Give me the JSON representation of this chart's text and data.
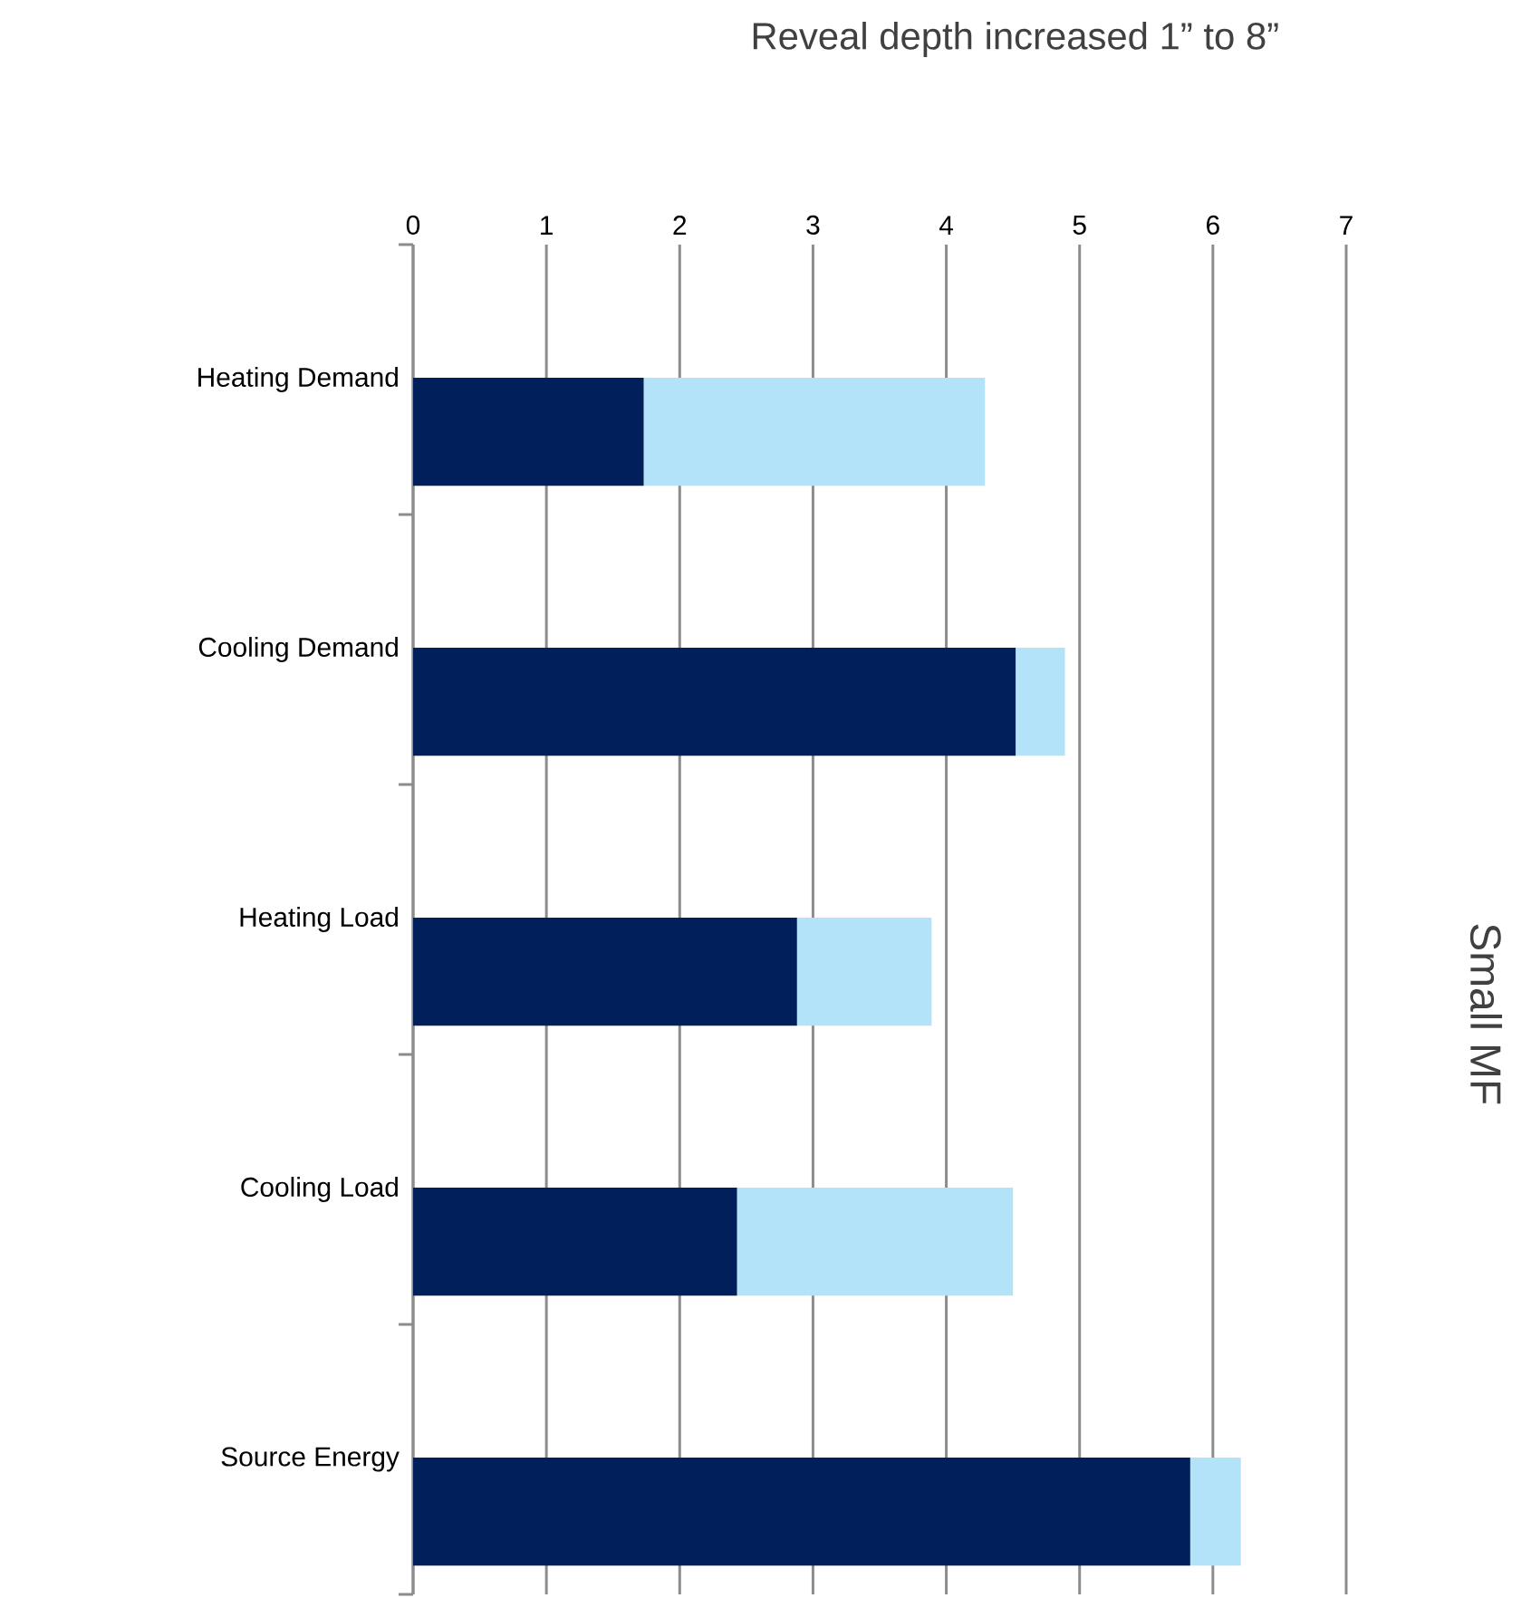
{
  "chart_data": {
    "type": "bar",
    "orientation": "horizontal",
    "stacked": true,
    "title": "Reveal depth increased 1” to 8”",
    "ylabel": "Small MF",
    "categories": [
      "Heating Demand",
      "Cooling Demand",
      "Heating Load",
      "Cooling Load",
      "Source Energy"
    ],
    "series": [
      {
        "color": "#001f5b",
        "values": [
          1.73,
          4.52,
          2.88,
          2.43,
          5.83
        ]
      },
      {
        "color": "#b3e3f8",
        "values": [
          2.56,
          0.37,
          1.01,
          2.07,
          0.38
        ]
      }
    ],
    "xlim": [
      0,
      7
    ],
    "xticks": [
      0,
      1,
      2,
      3,
      4,
      5,
      6,
      7
    ],
    "grid": "x"
  }
}
